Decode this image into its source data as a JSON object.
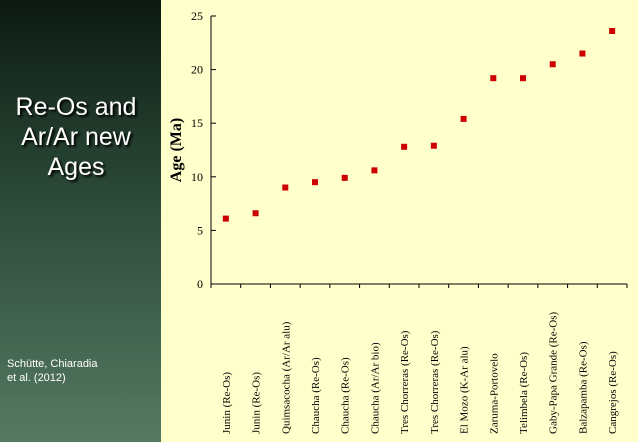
{
  "slide": {
    "title_lines": [
      "Re-Os and",
      "Ar/Ar new",
      "Ages"
    ],
    "citation_lines": [
      "Schütte, Chiaradia",
      " et al. (2012)"
    ]
  },
  "chart_data": {
    "type": "scatter",
    "title": "",
    "xlabel": "",
    "ylabel": "Age (Ma)",
    "ylim": [
      0,
      25
    ],
    "yticks": [
      0,
      5,
      10,
      15,
      20,
      25
    ],
    "grid": false,
    "marker_color": "#cc0000",
    "categories": [
      "Junin (Re-Os)",
      "Junin (Re-Os)",
      "Quimsacocha (Ar/Ar alu)",
      "Chaucha (Re-Os)",
      "Chaucha (Re-Os)",
      "Chaucha (Ar/Ar bio)",
      "Tres Chorreras (Re-Os)",
      "Tres Chorreras (Re-Os)",
      "El Mozo (K-Ar alu)",
      "Zaruma-Portovelo",
      "Telimbela (Re-Os)",
      "Gaby-Papa Grande (Re-Os)",
      "Balzapamba (Re-Os)",
      "Cangrejos (Re-Os)"
    ],
    "values": [
      6.1,
      6.6,
      9.0,
      9.5,
      9.9,
      10.6,
      12.8,
      12.9,
      15.4,
      19.2,
      19.2,
      20.5,
      21.5,
      23.6
    ]
  }
}
